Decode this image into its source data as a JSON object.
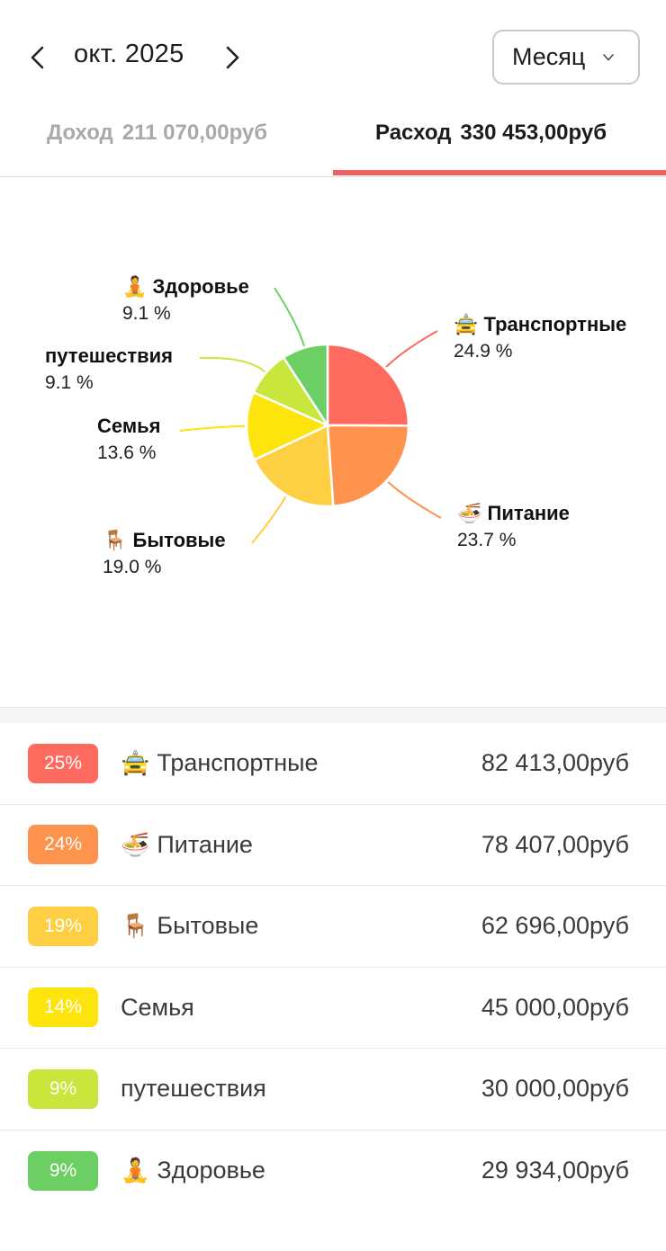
{
  "header": {
    "month": "окт. 2025",
    "period": "Месяц"
  },
  "tabs": {
    "income_label": "Доход",
    "income_amount": "211 070,00руб",
    "expense_label": "Расход",
    "expense_amount": "330 453,00руб"
  },
  "colors": {
    "accent": "#f06060",
    "transport": "#fe6b5e",
    "food": "#fe934e",
    "household": "#fece43",
    "family": "#fde40c",
    "travel": "#c8e63c",
    "health": "#6ccf63"
  },
  "chart_data": {
    "type": "pie",
    "slices": [
      {
        "name": "Транспортные",
        "icon": "taxi-icon",
        "glyph": "🚖",
        "value": 24.9,
        "label": "24.9 %",
        "color": "#fe6b5e"
      },
      {
        "name": "Питание",
        "icon": "noodles-icon",
        "glyph": "🍜",
        "value": 23.7,
        "label": "23.7 %",
        "color": "#fe934e"
      },
      {
        "name": "Бытовые",
        "icon": "chair-icon",
        "glyph": "🪑",
        "value": 19.0,
        "label": "19.0 %",
        "color": "#fece43"
      },
      {
        "name": "Семья",
        "icon": "",
        "glyph": "",
        "value": 13.6,
        "label": "13.6 %",
        "color": "#fde40c"
      },
      {
        "name": "путешествия",
        "icon": "",
        "glyph": "",
        "value": 9.1,
        "label": "9.1 %",
        "color": "#c8e63c"
      },
      {
        "name": "Здоровье",
        "icon": "meditation-icon",
        "glyph": "🧘",
        "value": 9.1,
        "label": "9.1 %",
        "color": "#6ccf63"
      }
    ]
  },
  "list": {
    "rows": [
      {
        "badge": "25%",
        "glyph": "🚖",
        "icon": "taxi-icon",
        "label": "Транспортные",
        "amount": "82 413,00руб",
        "color": "#fe6b5e"
      },
      {
        "badge": "24%",
        "glyph": "🍜",
        "icon": "noodles-icon",
        "label": "Питание",
        "amount": "78 407,00руб",
        "color": "#fe934e"
      },
      {
        "badge": "19%",
        "glyph": "🪑",
        "icon": "chair-icon",
        "label": "Бытовые",
        "amount": "62 696,00руб",
        "color": "#fece43"
      },
      {
        "badge": "14%",
        "glyph": "",
        "icon": "",
        "label": "Семья",
        "amount": "45 000,00руб",
        "color": "#fde40c"
      },
      {
        "badge": "9%",
        "glyph": "",
        "icon": "",
        "label": "путешествия",
        "amount": "30 000,00руб",
        "color": "#c8e63c"
      },
      {
        "badge": "9%",
        "glyph": "🧘",
        "icon": "meditation-icon",
        "label": "Здоровье",
        "amount": "29 934,00руб",
        "color": "#6ccf63"
      }
    ]
  }
}
